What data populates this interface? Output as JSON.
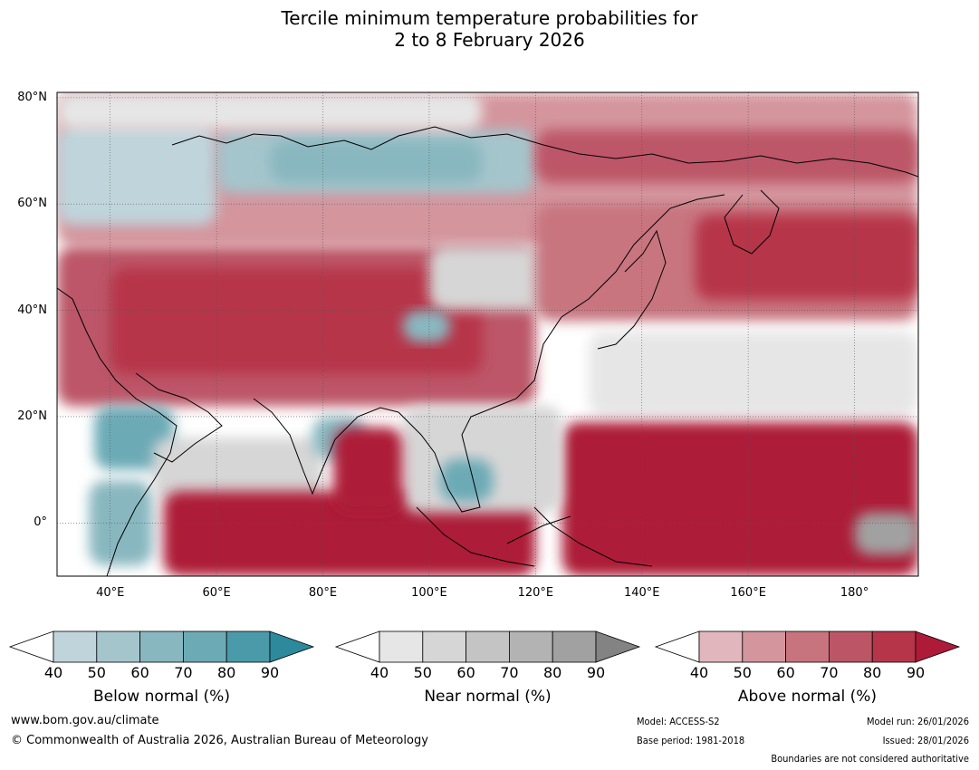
{
  "title_line1": "Tercile minimum temperature probabilities for",
  "title_line2": "2 to 8 February 2026",
  "map": {
    "lon_range": [
      30,
      192
    ],
    "lat_range": [
      -10,
      81
    ],
    "x_ticks": [
      {
        "lon": 40,
        "label": "40°E"
      },
      {
        "lon": 60,
        "label": "60°E"
      },
      {
        "lon": 80,
        "label": "80°E"
      },
      {
        "lon": 100,
        "label": "100°E"
      },
      {
        "lon": 120,
        "label": "120°E"
      },
      {
        "lon": 140,
        "label": "140°E"
      },
      {
        "lon": 160,
        "label": "160°E"
      },
      {
        "lon": 180,
        "label": "180°"
      }
    ],
    "y_ticks": [
      {
        "lat": 80,
        "label": "80°N"
      },
      {
        "lat": 60,
        "label": "60°N"
      },
      {
        "lat": 40,
        "label": "40°N"
      },
      {
        "lat": 20,
        "label": "20°N"
      },
      {
        "lat": 0,
        "label": "0°"
      }
    ],
    "regions": [
      {
        "category": "above",
        "level": 2,
        "lon": [
          30,
          192
        ],
        "lat": [
          52,
          81
        ]
      },
      {
        "category": "below",
        "level": 1,
        "lon": [
          30,
          60
        ],
        "lat": [
          56,
          75
        ]
      },
      {
        "category": "below",
        "level": 2,
        "lon": [
          60,
          120
        ],
        "lat": [
          62,
          74
        ]
      },
      {
        "category": "below",
        "level": 3,
        "lon": [
          70,
          110
        ],
        "lat": [
          64,
          72
        ]
      },
      {
        "category": "near",
        "level": 1,
        "lon": [
          30,
          110
        ],
        "lat": [
          74,
          81
        ]
      },
      {
        "category": "above",
        "level": 4,
        "lon": [
          120,
          192
        ],
        "lat": [
          64,
          74
        ]
      },
      {
        "category": "above",
        "level": 4,
        "lon": [
          30,
          120
        ],
        "lat": [
          22,
          52
        ]
      },
      {
        "category": "above",
        "level": 5,
        "lon": [
          40,
          110
        ],
        "lat": [
          28,
          48
        ]
      },
      {
        "category": "near",
        "level": 2,
        "lon": [
          100,
          140
        ],
        "lat": [
          40,
          52
        ]
      },
      {
        "category": "above",
        "level": 3,
        "lon": [
          120,
          192
        ],
        "lat": [
          38,
          60
        ]
      },
      {
        "category": "above",
        "level": 5,
        "lon": [
          150,
          192
        ],
        "lat": [
          42,
          58
        ]
      },
      {
        "category": "near",
        "level": 1,
        "lon": [
          130,
          192
        ],
        "lat": [
          20,
          36
        ]
      },
      {
        "category": "above",
        "level": 6,
        "lon": [
          125,
          192
        ],
        "lat": [
          -10,
          19
        ]
      },
      {
        "category": "near",
        "level": 5,
        "lon": [
          180,
          192
        ],
        "lat": [
          -6,
          2
        ]
      },
      {
        "category": "below",
        "level": 4,
        "lon": [
          37,
          52
        ],
        "lat": [
          10,
          22
        ]
      },
      {
        "category": "below",
        "level": 3,
        "lon": [
          36,
          48
        ],
        "lat": [
          -8,
          8
        ]
      },
      {
        "category": "near",
        "level": 2,
        "lon": [
          48,
          80
        ],
        "lat": [
          4,
          16
        ]
      },
      {
        "category": "above",
        "level": 6,
        "lon": [
          50,
          120
        ],
        "lat": [
          -10,
          6
        ]
      },
      {
        "category": "below",
        "level": 3,
        "lon": [
          78,
          88
        ],
        "lat": [
          12,
          20
        ]
      },
      {
        "category": "near",
        "level": 2,
        "lon": [
          95,
          125
        ],
        "lat": [
          2,
          22
        ]
      },
      {
        "category": "below",
        "level": 4,
        "lon": [
          102,
          112
        ],
        "lat": [
          4,
          12
        ]
      },
      {
        "category": "above",
        "level": 6,
        "lon": [
          82,
          95
        ],
        "lat": [
          2,
          18
        ]
      },
      {
        "category": "below",
        "level": 3,
        "lon": [
          95,
          104
        ],
        "lat": [
          34,
          40
        ]
      }
    ]
  },
  "colorbars": [
    {
      "category": "below",
      "title": "Below normal (%)",
      "ticks": [
        "40",
        "50",
        "60",
        "70",
        "80",
        "90"
      ],
      "colors": [
        "#c0d4db",
        "#a5c5cc",
        "#89b7c0",
        "#6caab6",
        "#4a9aa9",
        "#2c8a9c"
      ]
    },
    {
      "category": "near",
      "title": "Near normal (%)",
      "ticks": [
        "40",
        "50",
        "60",
        "70",
        "80",
        "90"
      ],
      "colors": [
        "#e6e6e6",
        "#d6d6d6",
        "#c4c4c4",
        "#b3b3b3",
        "#a1a1a1",
        "#838383"
      ]
    },
    {
      "category": "above",
      "title": "Above normal (%)",
      "ticks": [
        "40",
        "50",
        "60",
        "70",
        "80",
        "90"
      ],
      "colors": [
        "#e1b7bd",
        "#d4959d",
        "#c8747f",
        "#bc5667",
        "#b73548",
        "#ad1b38"
      ]
    }
  ],
  "footer": {
    "website": "www.bom.gov.au/climate",
    "copyright": "© Commonwealth of Australia 2026, Australian Bureau of Meteorology",
    "model": "Model: ACCESS-S2",
    "base_period": "Base period: 1981-2018",
    "model_run": "Model run: 26/01/2026",
    "issued": "Issued: 28/01/2026",
    "boundaries": "Boundaries are not considered authoritative"
  }
}
